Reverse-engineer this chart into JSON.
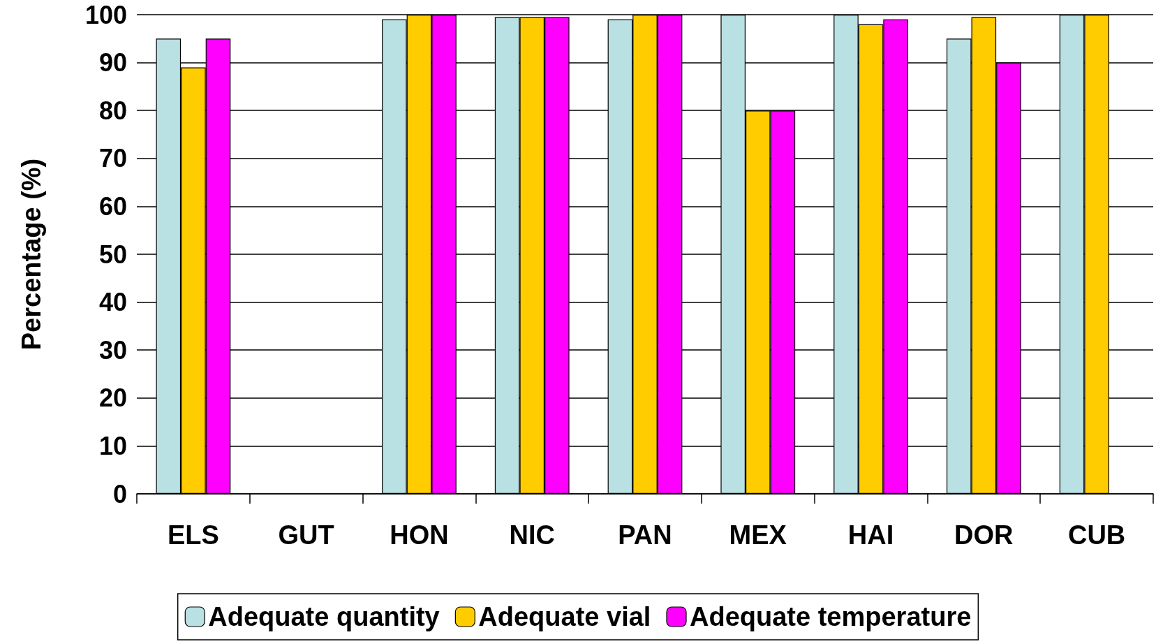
{
  "chart_data": {
    "type": "bar",
    "ylabel": "Percentage (%)",
    "categories": [
      "ELS",
      "GUT",
      "HON",
      "NIC",
      "PAN",
      "MEX",
      "HAI",
      "DOR",
      "CUB"
    ],
    "series": [
      {
        "name": "Adequate quantity",
        "color": "#b9e0e3",
        "values": [
          95,
          null,
          99,
          99.5,
          99,
          100,
          100,
          95,
          100
        ]
      },
      {
        "name": "Adequate vial",
        "color": "#ffcc00",
        "values": [
          89,
          null,
          100,
          99.5,
          100,
          80,
          98,
          99.5,
          100
        ]
      },
      {
        "name": "Adequate temperature",
        "color": "#ff00ff",
        "values": [
          95,
          null,
          100,
          99.5,
          100,
          80,
          99,
          90,
          null
        ]
      }
    ],
    "ylim": [
      0,
      100
    ],
    "yticks": [
      0,
      10,
      20,
      30,
      40,
      50,
      60,
      70,
      80,
      90,
      100
    ],
    "grid": "y",
    "legend": "bottom"
  }
}
